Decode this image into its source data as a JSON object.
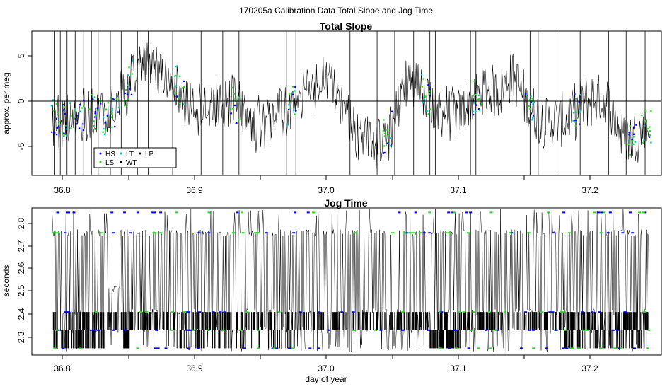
{
  "figure_title": "170205a   Calibration Data Total Slope and Jog Time",
  "x_axis_label": "day of year",
  "legend": [
    {
      "label": "HS",
      "color": "#0000ff"
    },
    {
      "label": "LS",
      "color": "#22cc22"
    },
    {
      "label": "LT",
      "color": "#00cccc"
    },
    {
      "label": "WT",
      "color": "#000000"
    },
    {
      "label": "LP",
      "color": "#000000"
    }
  ],
  "colors": {
    "trace": "#000000",
    "hs": "#0000ff",
    "ls": "#22dd22",
    "lt": "#00cccc"
  },
  "chart_data": [
    {
      "type": "line",
      "title": "Total Slope",
      "xlabel": "",
      "ylabel": "approx. per meg",
      "xlim": [
        36.78,
        37.245
      ],
      "ylim": [
        -8.1,
        7.8
      ],
      "xticks": [
        "36.8",
        "36.9",
        "37.0",
        "37.1",
        "37.2"
      ],
      "yticks": [
        "-5",
        "0",
        "5"
      ],
      "hline": 0,
      "x": [
        36.795,
        36.805,
        36.815,
        36.825,
        36.835,
        36.845,
        36.855,
        36.865,
        36.875,
        36.885,
        36.895,
        36.905,
        36.915,
        36.925,
        36.935,
        36.945,
        36.955,
        36.965,
        36.975,
        36.985,
        36.995,
        37.005,
        37.015,
        37.025,
        37.035,
        37.045,
        37.055,
        37.065,
        37.075,
        37.085,
        37.095,
        37.105,
        37.115,
        37.125,
        37.135,
        37.145,
        37.155,
        37.165,
        37.175,
        37.185,
        37.195,
        37.205,
        37.215,
        37.225,
        37.235
      ],
      "y": [
        -1.5,
        -2.0,
        -2.0,
        -1.0,
        -2.0,
        0.0,
        3.0,
        4.5,
        3.5,
        3.0,
        -0.5,
        -1.0,
        -0.5,
        0.5,
        -1.0,
        -2.5,
        -3.0,
        -1.0,
        0.0,
        1.0,
        2.5,
        1.5,
        -2.5,
        -4.0,
        -4.5,
        -3.0,
        1.5,
        2.5,
        -0.5,
        -1.0,
        -1.5,
        0.0,
        1.5,
        1.0,
        3.0,
        0.0,
        -2.0,
        -2.0,
        -2.0,
        -0.5,
        0.5,
        0.0,
        -3.5,
        -4.0,
        -2.5
      ]
    },
    {
      "type": "line",
      "title": "Jog Time",
      "xlabel": "day of year",
      "ylabel": "seconds",
      "xlim": [
        36.78,
        37.245
      ],
      "ylim": [
        2.22,
        2.87
      ],
      "xticks": [
        "36.8",
        "36.9",
        "37.0",
        "37.1",
        "37.2"
      ],
      "yticks": [
        "2.3",
        "2.4",
        "2.5",
        "2.6",
        "2.7",
        "2.8"
      ],
      "levels": [
        2.25,
        2.33,
        2.41,
        2.76,
        2.85
      ]
    }
  ]
}
